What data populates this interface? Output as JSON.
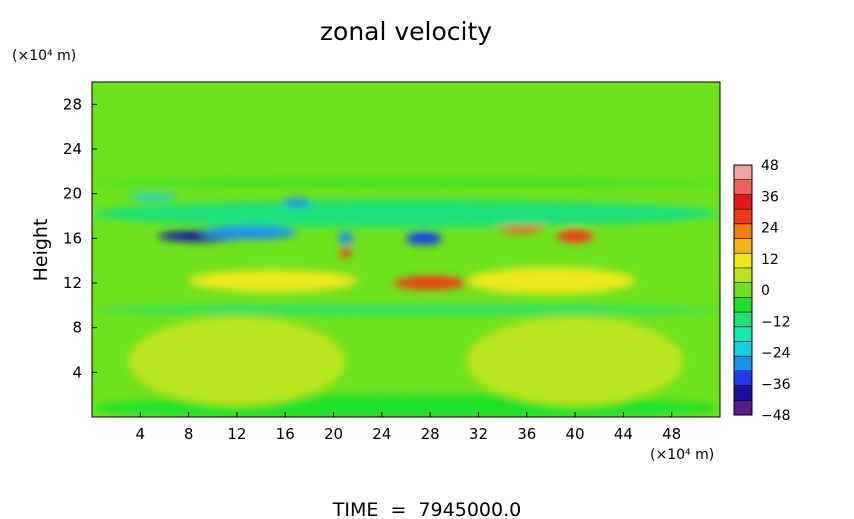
{
  "chart_data": {
    "type": "heatmap",
    "title": "zonal velocity",
    "ylabel": "Height",
    "x_unit": "(×10⁴ m)",
    "y_unit": "(×10⁴ m)",
    "footer": "TIME  =  7945000.0",
    "x_range": [
      0,
      52
    ],
    "y_range": [
      0,
      30
    ],
    "x_ticks": [
      4,
      8,
      12,
      16,
      20,
      24,
      28,
      32,
      36,
      40,
      44,
      48
    ],
    "y_ticks": [
      4,
      8,
      12,
      16,
      20,
      24,
      28
    ],
    "colorbar": {
      "ticks": [
        48,
        36,
        24,
        12,
        0,
        -12,
        -24,
        -36,
        -48
      ],
      "range": [
        -48,
        48
      ],
      "colors": [
        "#5b1a8c",
        "#1a0fa0",
        "#1f3ce6",
        "#1e8fef",
        "#15cfe3",
        "#17e6b5",
        "#1fe07a",
        "#22e02a",
        "#6fe21e",
        "#b8e41c",
        "#efe81a",
        "#f8b519",
        "#f47e16",
        "#ee3d14",
        "#e81713",
        "#f06060",
        "#f3a2a2"
      ]
    },
    "field": {
      "background": 0,
      "features": [
        {
          "x": 26,
          "y": 0.8,
          "w": 26,
          "h": 1.2,
          "v": -6
        },
        {
          "x": 12,
          "y": 5,
          "w": 9,
          "h": 4,
          "v": 5
        },
        {
          "x": 40,
          "y": 5,
          "w": 9,
          "h": 4,
          "v": 5
        },
        {
          "x": 26,
          "y": 9.6,
          "w": 26,
          "h": 0.35,
          "v": -13
        },
        {
          "x": 15,
          "y": 12.2,
          "w": 7,
          "h": 1.0,
          "v": 13
        },
        {
          "x": 28,
          "y": 12,
          "w": 3,
          "h": 0.6,
          "v": 28
        },
        {
          "x": 38,
          "y": 12.2,
          "w": 7,
          "h": 1.2,
          "v": 10
        },
        {
          "x": 9,
          "y": 16.2,
          "w": 3.5,
          "h": 0.5,
          "v": -38
        },
        {
          "x": 13,
          "y": 16.5,
          "w": 4,
          "h": 0.6,
          "v": -30
        },
        {
          "x": 27.5,
          "y": 16,
          "w": 1.5,
          "h": 0.6,
          "v": -34
        },
        {
          "x": 21,
          "y": 16,
          "w": 0.6,
          "h": 0.6,
          "v": -30
        },
        {
          "x": 21,
          "y": 14.7,
          "w": 0.5,
          "h": 0.4,
          "v": 30
        },
        {
          "x": 35.5,
          "y": 17.3,
          "w": 2.2,
          "h": 0.8,
          "v": 28
        },
        {
          "x": 40,
          "y": 16.2,
          "w": 1.5,
          "h": 0.6,
          "v": 26
        },
        {
          "x": 26,
          "y": 18.2,
          "w": 26,
          "h": 1.2,
          "v": -10
        },
        {
          "x": 17,
          "y": 19.2,
          "w": 1.2,
          "h": 0.4,
          "v": -28
        },
        {
          "x": 5,
          "y": 19.7,
          "w": 2.0,
          "h": 0.3,
          "v": -20
        },
        {
          "x": 26,
          "y": 21,
          "w": 26,
          "h": 0.25,
          "v": -6
        }
      ]
    }
  }
}
